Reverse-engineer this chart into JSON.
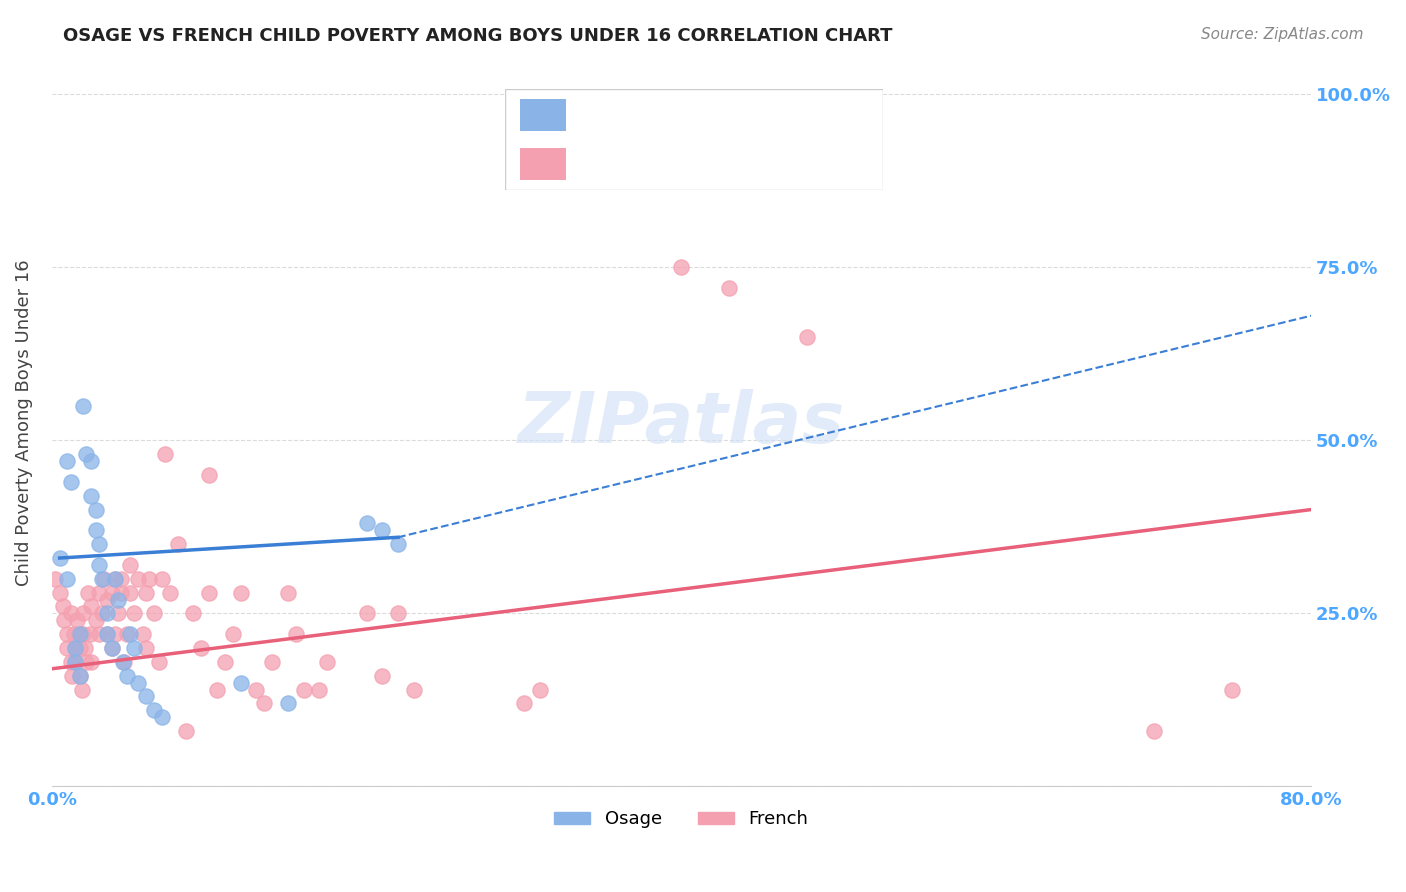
{
  "title": "OSAGE VS FRENCH CHILD POVERTY AMONG BOYS UNDER 16 CORRELATION CHART",
  "source": "Source: ZipAtlas.com",
  "ylabel": "Child Poverty Among Boys Under 16",
  "xmin": 0.0,
  "xmax": 0.8,
  "ymin": 0.0,
  "ymax": 1.05,
  "yticks": [
    0.0,
    0.25,
    0.5,
    0.75,
    1.0
  ],
  "xticks": [
    0.0,
    0.2,
    0.4,
    0.6,
    0.8
  ],
  "xtick_labels": [
    "0.0%",
    "",
    "",
    "",
    "80.0%"
  ],
  "ytick_labels_right": [
    "",
    "25.0%",
    "50.0%",
    "75.0%",
    "100.0%"
  ],
  "watermark": "ZIPatlas",
  "osage_color": "#8ab4e8",
  "french_color": "#f4a0b0",
  "osage_line_color": "#3a7fd5",
  "french_line_color": "#e8607a",
  "tick_color": "#4da6ff",
  "osage_points": [
    [
      0.005,
      0.33
    ],
    [
      0.01,
      0.3
    ],
    [
      0.01,
      0.47
    ],
    [
      0.012,
      0.44
    ],
    [
      0.015,
      0.2
    ],
    [
      0.015,
      0.18
    ],
    [
      0.018,
      0.22
    ],
    [
      0.018,
      0.16
    ],
    [
      0.02,
      0.55
    ],
    [
      0.022,
      0.48
    ],
    [
      0.025,
      0.47
    ],
    [
      0.025,
      0.42
    ],
    [
      0.028,
      0.4
    ],
    [
      0.028,
      0.37
    ],
    [
      0.03,
      0.35
    ],
    [
      0.03,
      0.32
    ],
    [
      0.032,
      0.3
    ],
    [
      0.035,
      0.25
    ],
    [
      0.035,
      0.22
    ],
    [
      0.038,
      0.2
    ],
    [
      0.04,
      0.3
    ],
    [
      0.042,
      0.27
    ],
    [
      0.045,
      0.18
    ],
    [
      0.048,
      0.16
    ],
    [
      0.05,
      0.22
    ],
    [
      0.052,
      0.2
    ],
    [
      0.055,
      0.15
    ],
    [
      0.06,
      0.13
    ],
    [
      0.065,
      0.11
    ],
    [
      0.07,
      0.1
    ],
    [
      0.12,
      0.15
    ],
    [
      0.15,
      0.12
    ],
    [
      0.2,
      0.38
    ],
    [
      0.21,
      0.37
    ],
    [
      0.22,
      0.35
    ]
  ],
  "french_points": [
    [
      0.002,
      0.3
    ],
    [
      0.005,
      0.28
    ],
    [
      0.007,
      0.26
    ],
    [
      0.008,
      0.24
    ],
    [
      0.01,
      0.22
    ],
    [
      0.01,
      0.2
    ],
    [
      0.012,
      0.25
    ],
    [
      0.012,
      0.18
    ],
    [
      0.013,
      0.16
    ],
    [
      0.014,
      0.22
    ],
    [
      0.015,
      0.2
    ],
    [
      0.015,
      0.18
    ],
    [
      0.016,
      0.24
    ],
    [
      0.017,
      0.22
    ],
    [
      0.018,
      0.2
    ],
    [
      0.018,
      0.16
    ],
    [
      0.019,
      0.14
    ],
    [
      0.02,
      0.25
    ],
    [
      0.02,
      0.22
    ],
    [
      0.021,
      0.2
    ],
    [
      0.022,
      0.18
    ],
    [
      0.023,
      0.28
    ],
    [
      0.024,
      0.22
    ],
    [
      0.025,
      0.26
    ],
    [
      0.025,
      0.18
    ],
    [
      0.028,
      0.24
    ],
    [
      0.03,
      0.28
    ],
    [
      0.03,
      0.22
    ],
    [
      0.032,
      0.25
    ],
    [
      0.033,
      0.3
    ],
    [
      0.035,
      0.27
    ],
    [
      0.035,
      0.22
    ],
    [
      0.038,
      0.28
    ],
    [
      0.038,
      0.2
    ],
    [
      0.04,
      0.3
    ],
    [
      0.04,
      0.22
    ],
    [
      0.042,
      0.25
    ],
    [
      0.044,
      0.28
    ],
    [
      0.044,
      0.3
    ],
    [
      0.046,
      0.18
    ],
    [
      0.048,
      0.22
    ],
    [
      0.05,
      0.28
    ],
    [
      0.05,
      0.32
    ],
    [
      0.052,
      0.25
    ],
    [
      0.055,
      0.3
    ],
    [
      0.058,
      0.22
    ],
    [
      0.06,
      0.28
    ],
    [
      0.06,
      0.2
    ],
    [
      0.062,
      0.3
    ],
    [
      0.065,
      0.25
    ],
    [
      0.068,
      0.18
    ],
    [
      0.07,
      0.3
    ],
    [
      0.072,
      0.48
    ],
    [
      0.075,
      0.28
    ],
    [
      0.08,
      0.35
    ],
    [
      0.085,
      0.08
    ],
    [
      0.09,
      0.25
    ],
    [
      0.095,
      0.2
    ],
    [
      0.1,
      0.28
    ],
    [
      0.1,
      0.45
    ],
    [
      0.105,
      0.14
    ],
    [
      0.11,
      0.18
    ],
    [
      0.115,
      0.22
    ],
    [
      0.12,
      0.28
    ],
    [
      0.13,
      0.14
    ],
    [
      0.135,
      0.12
    ],
    [
      0.14,
      0.18
    ],
    [
      0.15,
      0.28
    ],
    [
      0.155,
      0.22
    ],
    [
      0.16,
      0.14
    ],
    [
      0.17,
      0.14
    ],
    [
      0.175,
      0.18
    ],
    [
      0.2,
      0.25
    ],
    [
      0.21,
      0.16
    ],
    [
      0.22,
      0.25
    ],
    [
      0.23,
      0.14
    ],
    [
      0.3,
      0.12
    ],
    [
      0.31,
      0.14
    ],
    [
      0.4,
      0.75
    ],
    [
      0.43,
      0.72
    ],
    [
      0.48,
      0.65
    ],
    [
      0.7,
      0.08
    ],
    [
      0.75,
      0.14
    ]
  ],
  "osage_line": [
    [
      0.005,
      0.33
    ],
    [
      0.22,
      0.36
    ]
  ],
  "osage_dash_line": [
    [
      0.22,
      0.36
    ],
    [
      0.8,
      0.68
    ]
  ],
  "french_line": [
    [
      0.0,
      0.17
    ],
    [
      0.8,
      0.4
    ]
  ]
}
